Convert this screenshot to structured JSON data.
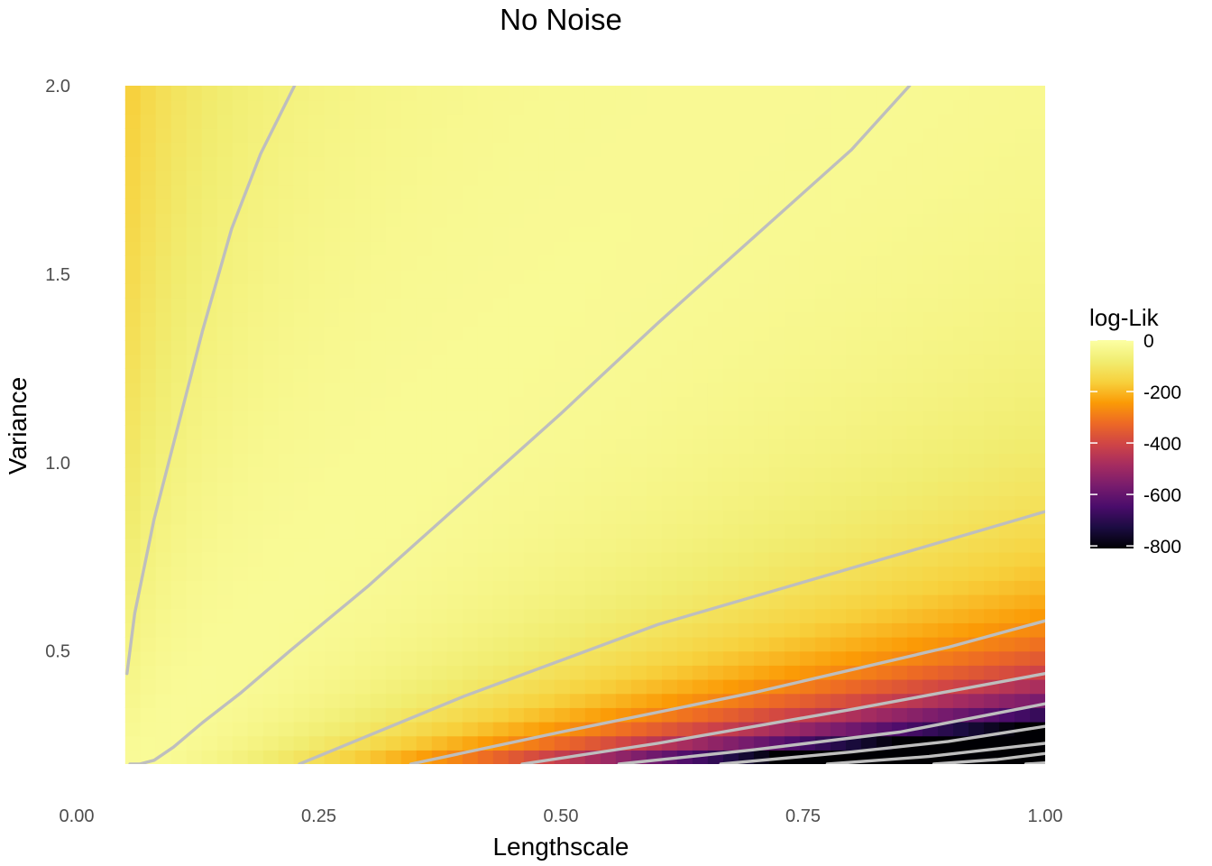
{
  "chart_data": {
    "type": "heatmap",
    "title": "No Noise",
    "xlabel": "Lengthscale",
    "ylabel": "Variance",
    "xlim": [
      0.0,
      1.0
    ],
    "ylim": [
      0.2,
      2.0
    ],
    "data_extent": {
      "x": [
        0.05,
        1.0
      ],
      "y": [
        0.2,
        2.0
      ]
    },
    "x_ticks": [
      {
        "value": 0.0,
        "label": "0.00"
      },
      {
        "value": 0.25,
        "label": "0.25"
      },
      {
        "value": 0.5,
        "label": "0.50"
      },
      {
        "value": 0.75,
        "label": "0.75"
      },
      {
        "value": 1.0,
        "label": "1.00"
      }
    ],
    "y_ticks": [
      {
        "value": 0.5,
        "label": "0.5"
      },
      {
        "value": 1.0,
        "label": "1.0"
      },
      {
        "value": 1.5,
        "label": "1.5"
      },
      {
        "value": 2.0,
        "label": "2.0"
      }
    ],
    "grid": false,
    "colorscale": "inferno",
    "colorbar": {
      "title": "log-Lik",
      "range": [
        -810,
        0
      ],
      "ticks": [
        {
          "value": 0,
          "label": "0"
        },
        {
          "value": -200,
          "label": "-200"
        },
        {
          "value": -400,
          "label": "-400"
        },
        {
          "value": -600,
          "label": "-600"
        },
        {
          "value": -800,
          "label": "-800"
        }
      ]
    },
    "contour_color": "#bebebe",
    "contours": [
      {
        "points": [
          [
            0.052,
            0.44
          ],
          [
            0.06,
            0.6
          ],
          [
            0.08,
            0.85
          ],
          [
            0.1,
            1.05
          ],
          [
            0.13,
            1.35
          ],
          [
            0.16,
            1.62
          ],
          [
            0.19,
            1.82
          ],
          [
            0.225,
            2.0
          ]
        ]
      },
      {
        "points": [
          [
            0.055,
            0.2
          ],
          [
            0.065,
            0.2
          ],
          [
            0.08,
            0.21
          ],
          [
            0.1,
            0.245
          ],
          [
            0.13,
            0.31
          ],
          [
            0.17,
            0.39
          ],
          [
            0.22,
            0.5
          ],
          [
            0.3,
            0.67
          ],
          [
            0.4,
            0.9
          ],
          [
            0.5,
            1.13
          ],
          [
            0.6,
            1.37
          ],
          [
            0.7,
            1.6
          ],
          [
            0.8,
            1.83
          ],
          [
            0.86,
            2.0
          ]
        ]
      },
      {
        "points": [
          [
            0.23,
            0.2
          ],
          [
            0.4,
            0.38
          ],
          [
            0.6,
            0.57
          ],
          [
            0.8,
            0.72
          ],
          [
            1.0,
            0.87
          ]
        ]
      },
      {
        "points": [
          [
            0.345,
            0.2
          ],
          [
            0.5,
            0.285
          ],
          [
            0.7,
            0.39
          ],
          [
            0.9,
            0.51
          ],
          [
            1.0,
            0.58
          ]
        ]
      },
      {
        "points": [
          [
            0.46,
            0.2
          ],
          [
            0.6,
            0.255
          ],
          [
            0.8,
            0.345
          ],
          [
            1.0,
            0.44
          ]
        ]
      },
      {
        "points": [
          [
            0.56,
            0.2
          ],
          [
            0.7,
            0.238
          ],
          [
            0.85,
            0.285
          ],
          [
            1.0,
            0.36
          ]
        ]
      },
      {
        "points": [
          [
            0.665,
            0.2
          ],
          [
            0.8,
            0.232
          ],
          [
            0.9,
            0.26
          ],
          [
            1.0,
            0.3
          ]
        ]
      },
      {
        "points": [
          [
            0.775,
            0.2
          ],
          [
            0.88,
            0.22
          ],
          [
            1.0,
            0.255
          ]
        ]
      },
      {
        "points": [
          [
            0.885,
            0.2
          ],
          [
            0.95,
            0.212
          ],
          [
            1.0,
            0.228
          ]
        ]
      },
      {
        "points": [
          [
            0.98,
            0.2
          ],
          [
            1.0,
            0.203
          ]
        ]
      }
    ]
  }
}
